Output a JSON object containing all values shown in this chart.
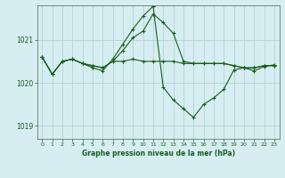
{
  "background_color": "#d6eef2",
  "grid_color": "#b8d8d8",
  "line_color": "#1a5c1a",
  "title": "Graphe pression niveau de la mer (hPa)",
  "xlim": [
    -0.5,
    23.5
  ],
  "ylim": [
    1018.7,
    1021.8
  ],
  "yticks": [
    1019,
    1020,
    1021
  ],
  "xtick_labels": [
    "0",
    "1",
    "2",
    "3",
    "4",
    "5",
    "6",
    "7",
    "8",
    "9",
    "10",
    "11",
    "12",
    "13",
    "14",
    "15",
    "16",
    "17",
    "18",
    "19",
    "20",
    "21",
    "22",
    "23"
  ],
  "series": [
    {
      "x": [
        0,
        1,
        2,
        3,
        4,
        5,
        6,
        7,
        8,
        9,
        10,
        11,
        12,
        13,
        14,
        15,
        16,
        17,
        18,
        19,
        20,
        21,
        22,
        23
      ],
      "y": [
        1020.6,
        1020.2,
        1020.5,
        1020.55,
        1020.45,
        1020.4,
        1020.35,
        1020.5,
        1020.5,
        1020.55,
        1020.5,
        1020.5,
        1020.5,
        1020.5,
        1020.45,
        1020.45,
        1020.45,
        1020.45,
        1020.45,
        1020.4,
        1020.35,
        1020.35,
        1020.4,
        1020.4
      ]
    },
    {
      "x": [
        0,
        1,
        2,
        3,
        4,
        5,
        6,
        7,
        8,
        9,
        10,
        11,
        12,
        13,
        14,
        15,
        16,
        17,
        18,
        19,
        20,
        21,
        22,
        23
      ],
      "y": [
        1020.6,
        1020.2,
        1020.5,
        1020.55,
        1020.45,
        1020.4,
        1020.35,
        1020.5,
        1020.75,
        1021.05,
        1021.2,
        1021.6,
        1021.4,
        1021.15,
        1020.5,
        1020.45,
        1020.45,
        1020.45,
        1020.45,
        1020.4,
        1020.35,
        1020.35,
        1020.4,
        1020.4
      ]
    },
    {
      "x": [
        0,
        1,
        2,
        3,
        4,
        5,
        6,
        7,
        8,
        9,
        10,
        11
      ],
      "y": [
        1020.6,
        1020.2,
        1020.5,
        1020.55,
        1020.45,
        1020.35,
        1020.28,
        1020.55,
        1020.9,
        1021.25,
        1021.55,
        1021.78
      ]
    },
    {
      "x": [
        11,
        12,
        13,
        14,
        15,
        16,
        17,
        18,
        19,
        20,
        21,
        22,
        23
      ],
      "y": [
        1021.78,
        1019.9,
        1019.6,
        1019.4,
        1019.2,
        1019.5,
        1019.65,
        1019.85,
        1020.3,
        1020.35,
        1020.28,
        1020.38,
        1020.42
      ]
    }
  ]
}
